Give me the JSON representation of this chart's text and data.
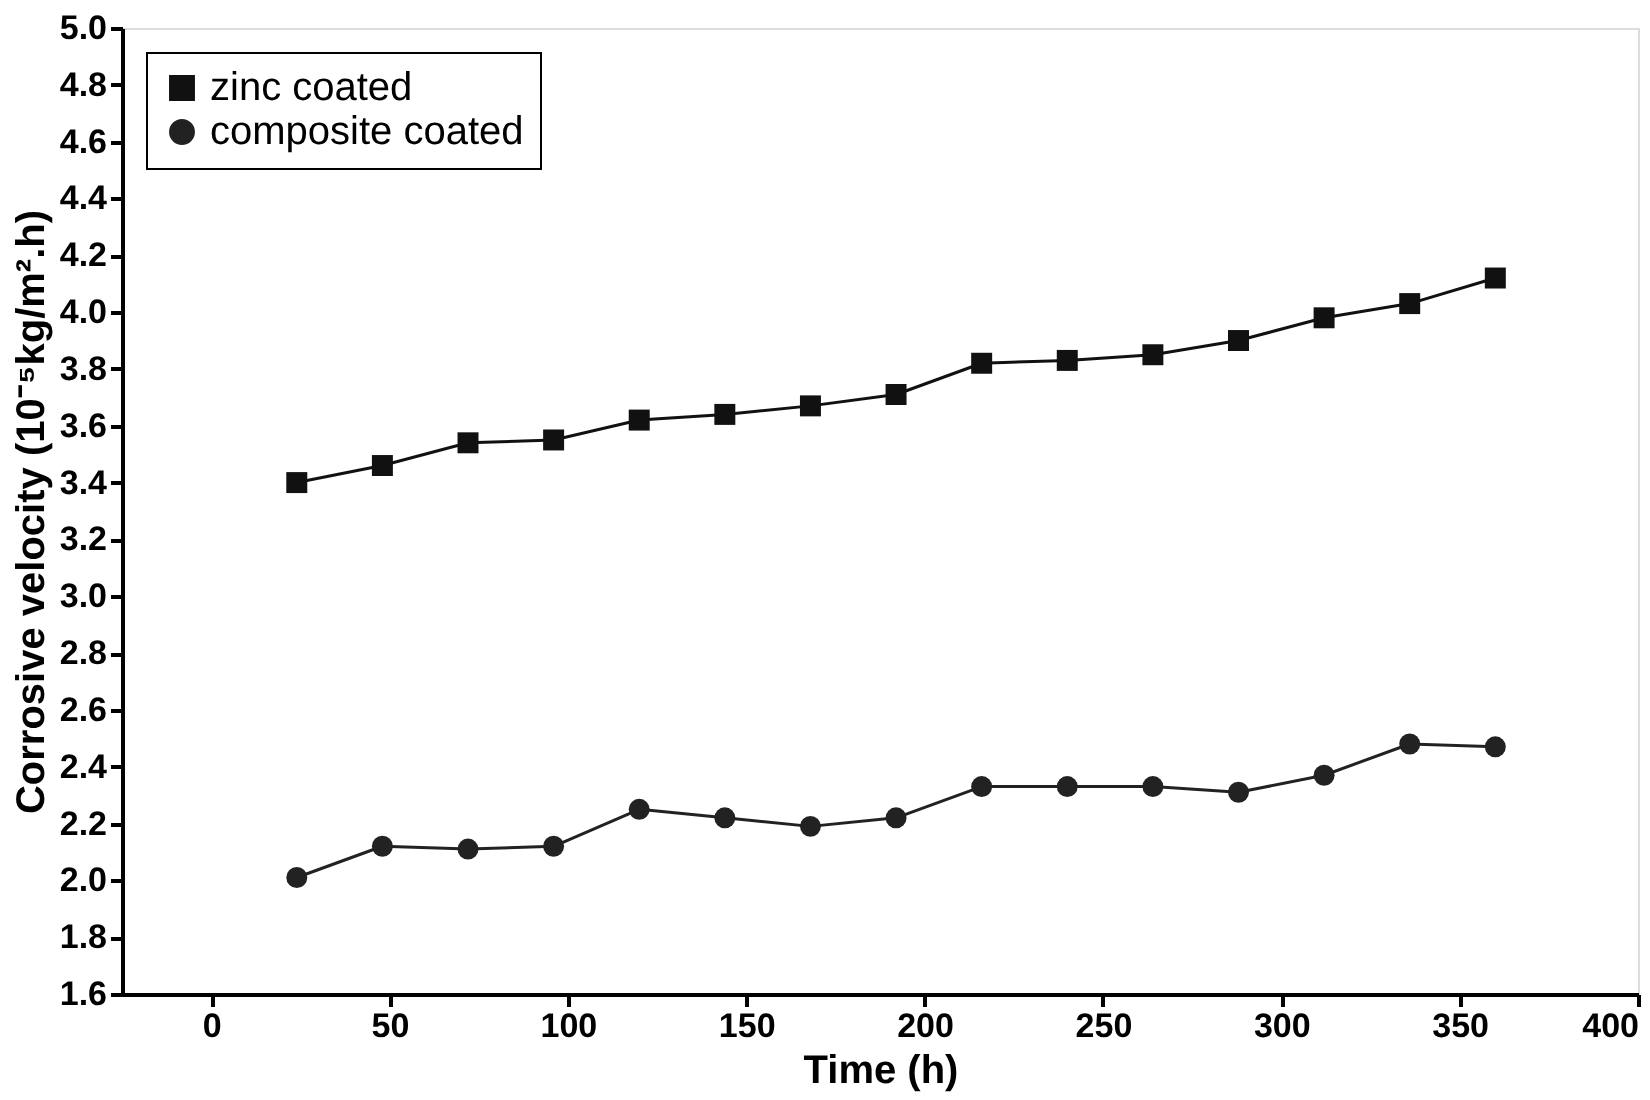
{
  "chart_data": {
    "type": "line",
    "xlabel": "Time (h)",
    "ylabel": "Corrosive velocity (10⁻⁵kg/m².h)",
    "xlim": [
      -25,
      400
    ],
    "xticks": [
      0,
      50,
      100,
      150,
      200,
      250,
      300,
      350,
      400
    ],
    "ylim": [
      1.6,
      5.0
    ],
    "yticks": [
      1.6,
      1.8,
      {
        "value": 2,
        "label": "2.0"
      },
      2.2,
      2.4,
      2.6,
      2.8,
      {
        "value": 3,
        "label": "3.0"
      },
      3.2,
      3.4,
      3.6,
      3.8,
      {
        "value": 4,
        "label": "4.0"
      },
      4.2,
      4.4,
      4.6,
      4.8,
      {
        "value": 5,
        "label": "5.0"
      }
    ],
    "x": [
      24,
      48,
      72,
      96,
      120,
      144,
      168,
      192,
      216,
      240,
      264,
      288,
      312,
      336,
      360
    ],
    "series": [
      {
        "name": "zinc coated",
        "color": "#111111",
        "marker": "square",
        "values": [
          3.4,
          3.46,
          3.54,
          3.55,
          3.62,
          3.64,
          3.67,
          3.71,
          3.82,
          3.83,
          3.85,
          3.9,
          3.98,
          4.03,
          4.12
        ]
      },
      {
        "name": "composite coated",
        "color": "#222222",
        "marker": "circle",
        "values": [
          2.01,
          2.12,
          2.11,
          2.12,
          2.25,
          2.22,
          2.19,
          2.22,
          2.33,
          2.33,
          2.33,
          2.31,
          2.37,
          2.48,
          2.47
        ]
      }
    ],
    "legend": "top left",
    "grid": false,
    "line_style": "solid"
  }
}
